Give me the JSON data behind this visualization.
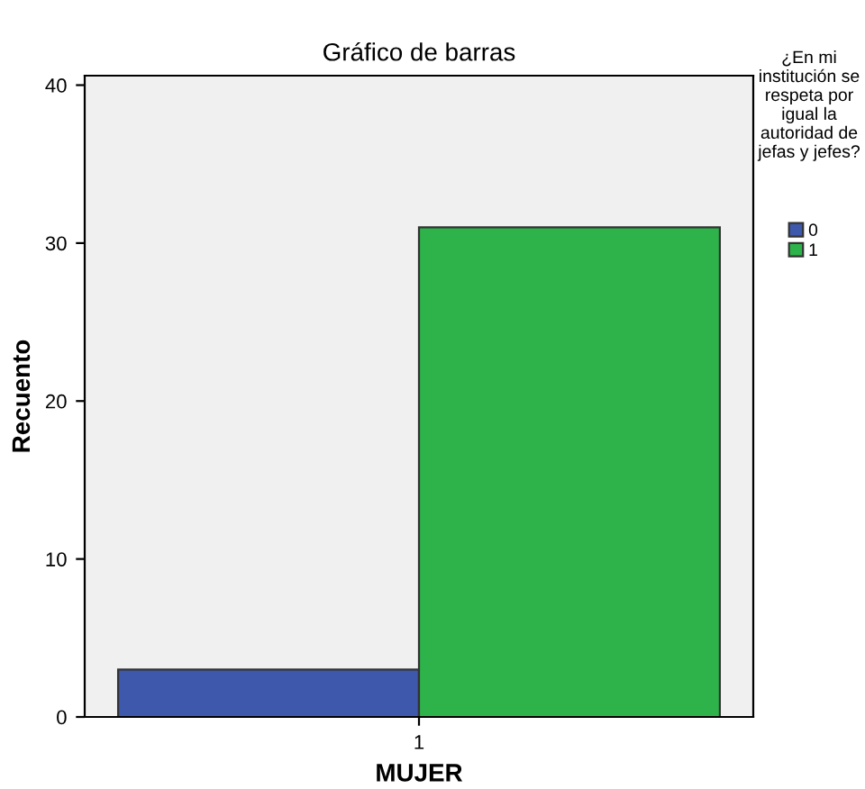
{
  "chart_data": {
    "type": "bar",
    "title": "Gráfico de barras",
    "xlabel": "MUJER",
    "ylabel": "Recuento",
    "legend_title": "¿En mi institución se respeta por igual la autoridad de jefas y jefes?",
    "categories": [
      "1"
    ],
    "series": [
      {
        "name": "0",
        "color": "#3e58ac",
        "values": [
          3
        ]
      },
      {
        "name": "1",
        "color": "#2db34a",
        "values": [
          31
        ]
      }
    ],
    "ylim": [
      0,
      40.6
    ],
    "yticks": [
      0,
      10,
      20,
      30,
      40
    ],
    "grid": false,
    "legend": "right"
  }
}
